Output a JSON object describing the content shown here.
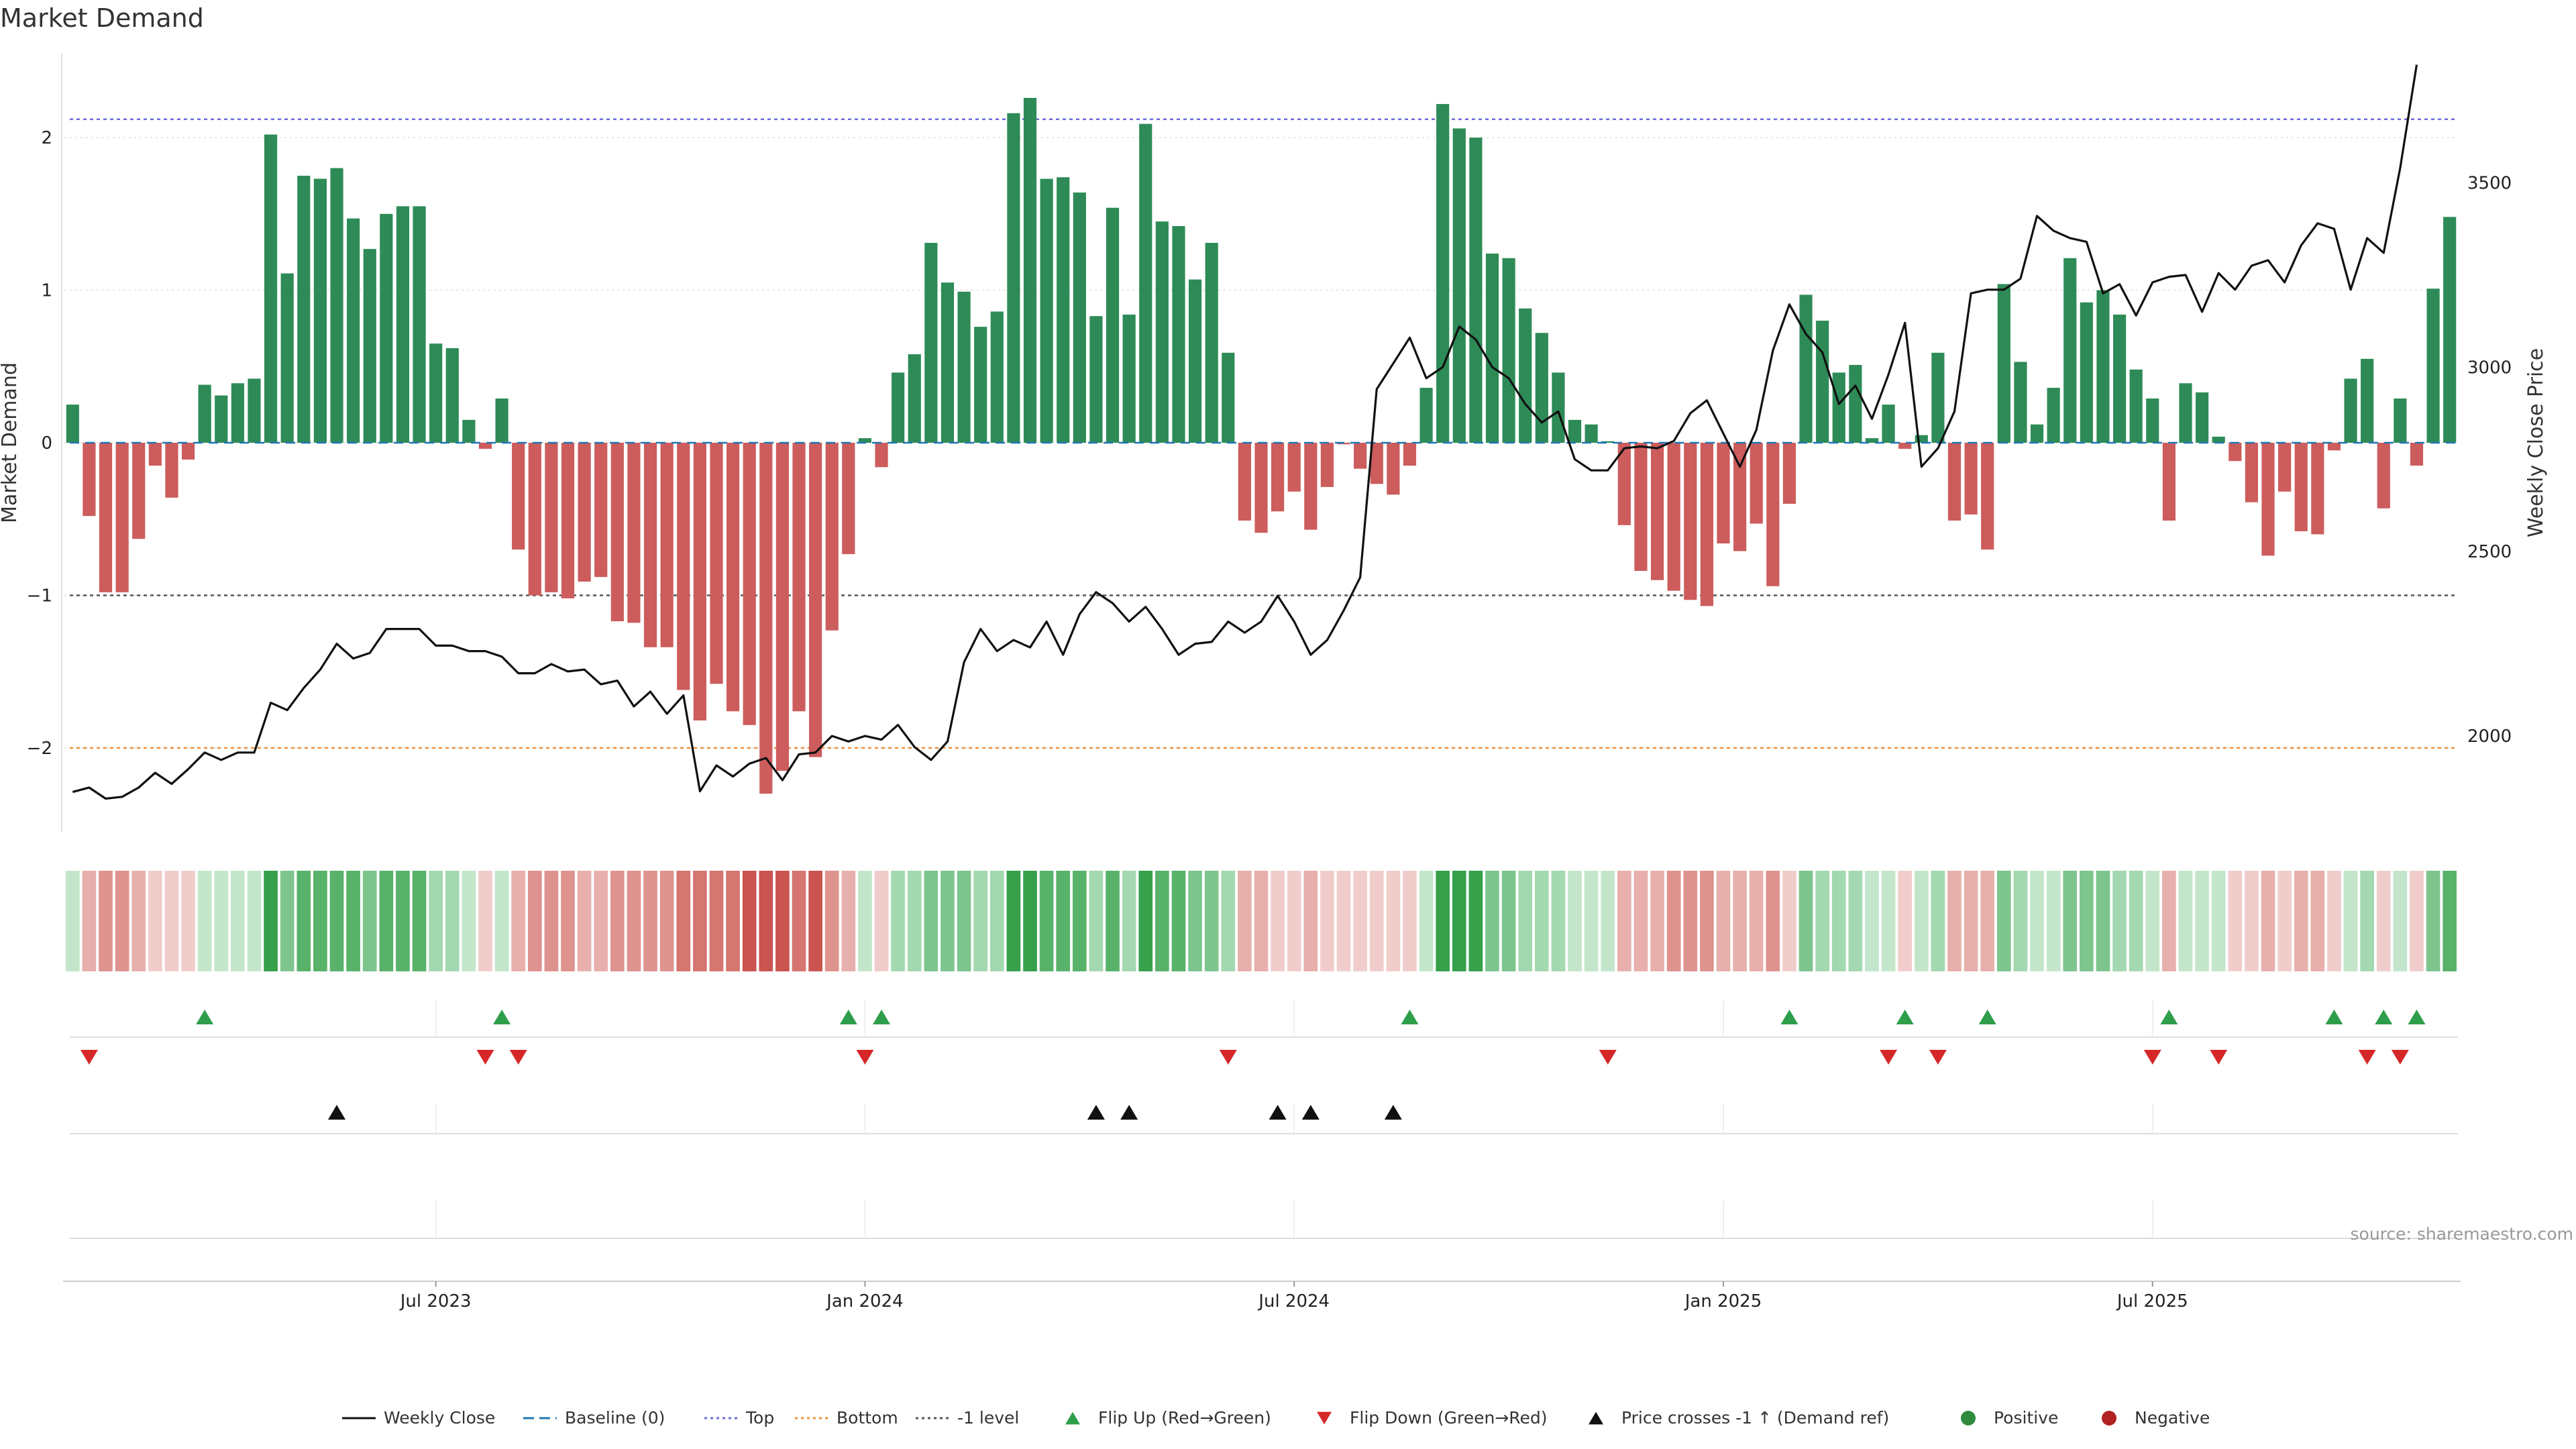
{
  "chart_data": {
    "type": "bar+line",
    "title": "Market Demand",
    "left_axis": {
      "label": "Market Demand",
      "ticks": [
        "−2",
        "−1",
        "0",
        "1",
        "2"
      ],
      "range": [
        -2.55,
        2.55
      ]
    },
    "right_axis": {
      "label": "Weekly Close Price",
      "ticks": [
        "2000",
        "2500",
        "3000",
        "3500"
      ],
      "range": [
        1740,
        3850
      ]
    },
    "x_axis": {
      "ticks": [
        "Jul 2023",
        "Jan 2024",
        "Jul 2024",
        "Jan 2025",
        "Jul 2025"
      ],
      "tick_weeks": [
        22,
        48,
        74,
        100,
        126
      ]
    },
    "reference_lines": [
      {
        "name": "Top",
        "value": 2.12,
        "color": "#6b6bd6"
      },
      {
        "name": "Bottom",
        "value": -2.0,
        "color": "#f0903c"
      },
      {
        "name": "-1 level",
        "value": -1.0,
        "color": "#555555"
      },
      {
        "name": "Baseline (0)",
        "value": 0,
        "color": "#1f77b4"
      }
    ],
    "demand": [
      0.25,
      -0.48,
      -0.98,
      -0.98,
      -0.63,
      -0.15,
      -0.36,
      -0.11,
      0.38,
      0.31,
      0.39,
      0.42,
      2.02,
      1.11,
      1.75,
      1.73,
      1.8,
      1.47,
      1.27,
      1.5,
      1.55,
      1.55,
      0.65,
      0.62,
      0.15,
      -0.04,
      0.29,
      -0.7,
      -1.0,
      -0.98,
      -1.02,
      -0.91,
      -0.88,
      -1.17,
      -1.18,
      -1.34,
      -1.34,
      -1.62,
      -1.82,
      -1.58,
      -1.76,
      -1.85,
      -2.3,
      -2.15,
      -1.76,
      -2.06,
      -1.23,
      -0.73,
      0.03,
      -0.16,
      0.46,
      0.58,
      1.31,
      1.05,
      0.99,
      0.76,
      0.86,
      2.16,
      2.26,
      1.73,
      1.74,
      1.64,
      0.83,
      1.54,
      0.84,
      2.09,
      1.45,
      1.42,
      1.07,
      1.31,
      0.59,
      -0.51,
      -0.59,
      -0.45,
      -0.32,
      -0.57,
      -0.29,
      -0.01,
      -0.17,
      -0.27,
      -0.34,
      -0.15,
      0.36,
      2.22,
      2.06,
      2.0,
      1.24,
      1.21,
      0.88,
      0.72,
      0.46,
      0.15,
      0.12,
      0.01,
      -0.54,
      -0.84,
      -0.9,
      -0.97,
      -1.03,
      -1.07,
      -0.66,
      -0.71,
      -0.53,
      -0.94,
      -0.4,
      0.97,
      0.8,
      0.46,
      0.51,
      0.03,
      0.25,
      -0.04,
      0.05,
      0.59,
      -0.51,
      -0.47,
      -0.7,
      1.04,
      0.53,
      0.12,
      0.36,
      1.21,
      0.92,
      1.0,
      0.84,
      0.48,
      0.29,
      -0.51,
      0.39,
      0.33,
      0.04,
      -0.12,
      -0.39,
      -0.74,
      -0.32,
      -0.58,
      -0.6,
      -0.05,
      0.42,
      0.55,
      -0.43,
      0.29,
      -0.15,
      1.01,
      1.48
    ],
    "price": [
      1848,
      1860,
      1830,
      1835,
      1860,
      1900,
      1870,
      1910,
      1955,
      1935,
      1955,
      1955,
      2090,
      2070,
      2130,
      2180,
      2250,
      2210,
      2225,
      2290,
      2290,
      2290,
      2245,
      2245,
      2230,
      2230,
      2215,
      2170,
      2170,
      2195,
      2175,
      2180,
      2140,
      2150,
      2080,
      2120,
      2060,
      2110,
      1850,
      1920,
      1890,
      1925,
      1940,
      1880,
      1950,
      1955,
      2000,
      1985,
      2000,
      1990,
      2030,
      1970,
      1935,
      1985,
      2200,
      2290,
      2230,
      2260,
      2240,
      2310,
      2220,
      2330,
      2390,
      2360,
      2310,
      2350,
      2290,
      2220,
      2250,
      2255,
      2310,
      2280,
      2310,
      2380,
      2310,
      2220,
      2260,
      2340,
      2430,
      2940,
      3010,
      3080,
      2970,
      3000,
      3110,
      3075,
      3000,
      2970,
      2900,
      2850,
      2880,
      2750,
      2720,
      2720,
      2780,
      2785,
      2780,
      2800,
      2875,
      2910,
      2820,
      2730,
      2830,
      3045,
      3170,
      3090,
      3040,
      2900,
      2950,
      2860,
      2980,
      3120,
      2730,
      2780,
      2880,
      3200,
      3210,
      3210,
      3240,
      3410,
      3370,
      3350,
      3340,
      3200,
      3225,
      3140,
      3230,
      3245,
      3250,
      3150,
      3255,
      3210,
      3275,
      3290,
      3230,
      3330,
      3390,
      3375,
      3210,
      3350,
      3310,
      3540,
      3820
    ],
    "sentiment_colors": {
      "positive_levels": [
        "#c3e6cb",
        "#a3d8b0",
        "#7dc58d",
        "#59b26a",
        "#36a04b"
      ],
      "negative_levels": [
        "#f0cdcb",
        "#e7b0ad",
        "#de938f",
        "#d57670",
        "#c95450"
      ]
    },
    "event_rows": {
      "flip_up_weeks": [
        8,
        26,
        47,
        49,
        81,
        104,
        111,
        116,
        127,
        137,
        140,
        142
      ],
      "flip_down_weeks": [
        1,
        25,
        27,
        48,
        70,
        93,
        110,
        113,
        126,
        130,
        139,
        141
      ],
      "price_cross_weeks": [
        16,
        62,
        64,
        73,
        75,
        80
      ]
    },
    "legend": [
      {
        "label": "Weekly Close",
        "marker": "line-solid",
        "color": "#111111"
      },
      {
        "label": "Baseline (0)",
        "marker": "line-dashed",
        "color": "#1f77b4"
      },
      {
        "label": "Top",
        "marker": "line-dotted",
        "color": "#6b6bd6"
      },
      {
        "label": "Bottom",
        "marker": "line-dotted",
        "color": "#f0903c"
      },
      {
        "label": "-1 level",
        "marker": "line-dotted",
        "color": "#555555"
      },
      {
        "label": "Flip Up (Red→Green)",
        "marker": "triangle-up",
        "color": "#2e9e4a"
      },
      {
        "label": "Flip Down (Green→Red)",
        "marker": "triangle-down",
        "color": "#d62728"
      },
      {
        "label": "Price crosses -1 ↑ (Demand ref)",
        "marker": "triangle-up",
        "color": "#111111"
      },
      {
        "label": "Positive",
        "marker": "circle",
        "color": "#2e8b3e"
      },
      {
        "label": "Negative",
        "marker": "circle",
        "color": "#b22222"
      }
    ],
    "source": "source: sharemaestro.com"
  },
  "colors": {
    "bar_positive": "#2e8b57",
    "bar_negative": "#cd5c5c",
    "price_line": "#111111",
    "grid": "#e6e6e6"
  }
}
